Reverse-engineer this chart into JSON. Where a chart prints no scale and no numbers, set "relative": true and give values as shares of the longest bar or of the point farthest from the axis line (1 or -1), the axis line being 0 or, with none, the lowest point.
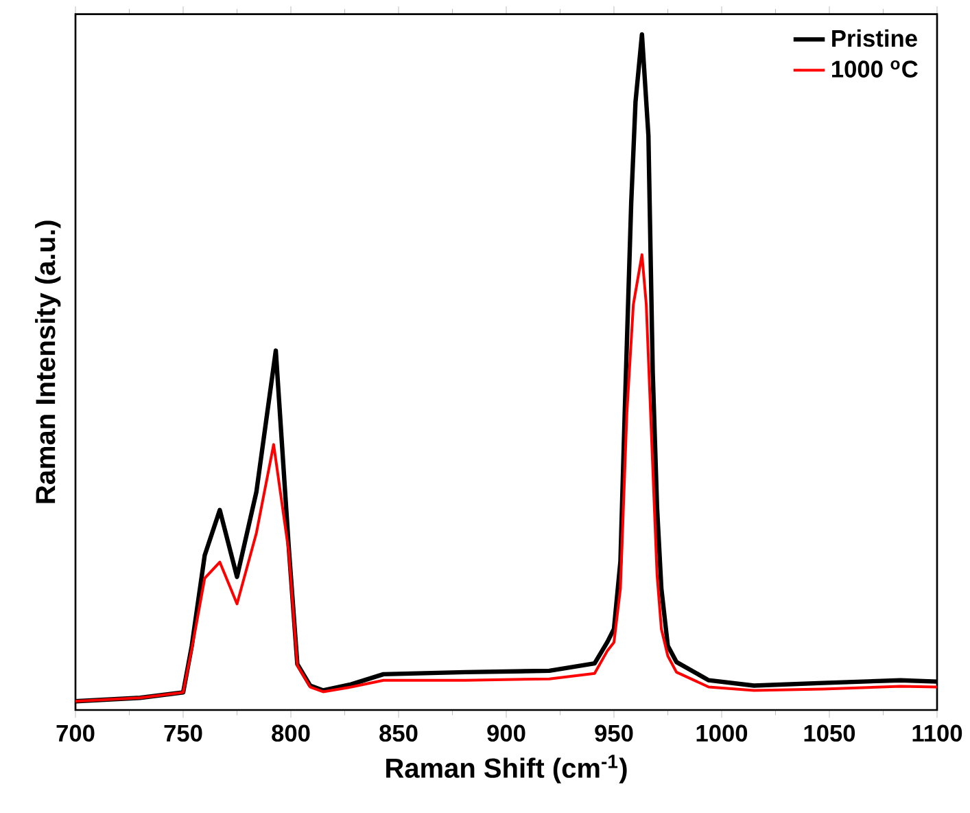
{
  "chart_data": {
    "type": "line",
    "relative": true,
    "xlabel": "Raman Shift (cm$^{-1}$)",
    "ylabel": "Raman Intensity (a.u.)",
    "xlim": [
      700,
      1100
    ],
    "xticks": [
      700,
      750,
      800,
      850,
      900,
      950,
      1000,
      1050,
      1100
    ],
    "legend": "top right",
    "series": [
      {
        "name": "Pristine",
        "color": "#000000",
        "x": [
          700,
          730,
          750,
          754,
          760,
          767,
          775,
          784,
          793,
          799,
          803,
          809,
          815,
          828,
          843,
          881,
          920,
          941,
          947,
          950,
          953,
          955,
          958,
          960,
          963,
          966,
          968,
          970,
          972,
          975,
          979,
          994,
          1015,
          1047,
          1083,
          1100
        ],
        "values": [
          0.013,
          0.018,
          0.026,
          0.095,
          0.229,
          0.296,
          0.197,
          0.323,
          0.532,
          0.242,
          0.068,
          0.036,
          0.029,
          0.038,
          0.053,
          0.056,
          0.058,
          0.069,
          0.101,
          0.12,
          0.22,
          0.44,
          0.75,
          0.9,
          1.0,
          0.85,
          0.5,
          0.3,
          0.18,
          0.095,
          0.071,
          0.044,
          0.036,
          0.04,
          0.044,
          0.042
        ]
      },
      {
        "name": "1000 $^{o}$C",
        "color": "#ff0000",
        "x": [
          700,
          730,
          750,
          754,
          760,
          767,
          775,
          784,
          792,
          799,
          803,
          809,
          815,
          828,
          843,
          881,
          920,
          941,
          947,
          950,
          953,
          956,
          959,
          963,
          965,
          967,
          970,
          972,
          975,
          979,
          994,
          1015,
          1047,
          1083,
          1100
        ],
        "values": [
          0.013,
          0.018,
          0.026,
          0.09,
          0.195,
          0.219,
          0.157,
          0.262,
          0.393,
          0.235,
          0.066,
          0.034,
          0.027,
          0.034,
          0.044,
          0.044,
          0.046,
          0.054,
          0.088,
          0.1,
          0.18,
          0.44,
          0.6,
          0.674,
          0.6,
          0.44,
          0.2,
          0.12,
          0.08,
          0.056,
          0.034,
          0.029,
          0.031,
          0.035,
          0.034
        ]
      }
    ]
  }
}
